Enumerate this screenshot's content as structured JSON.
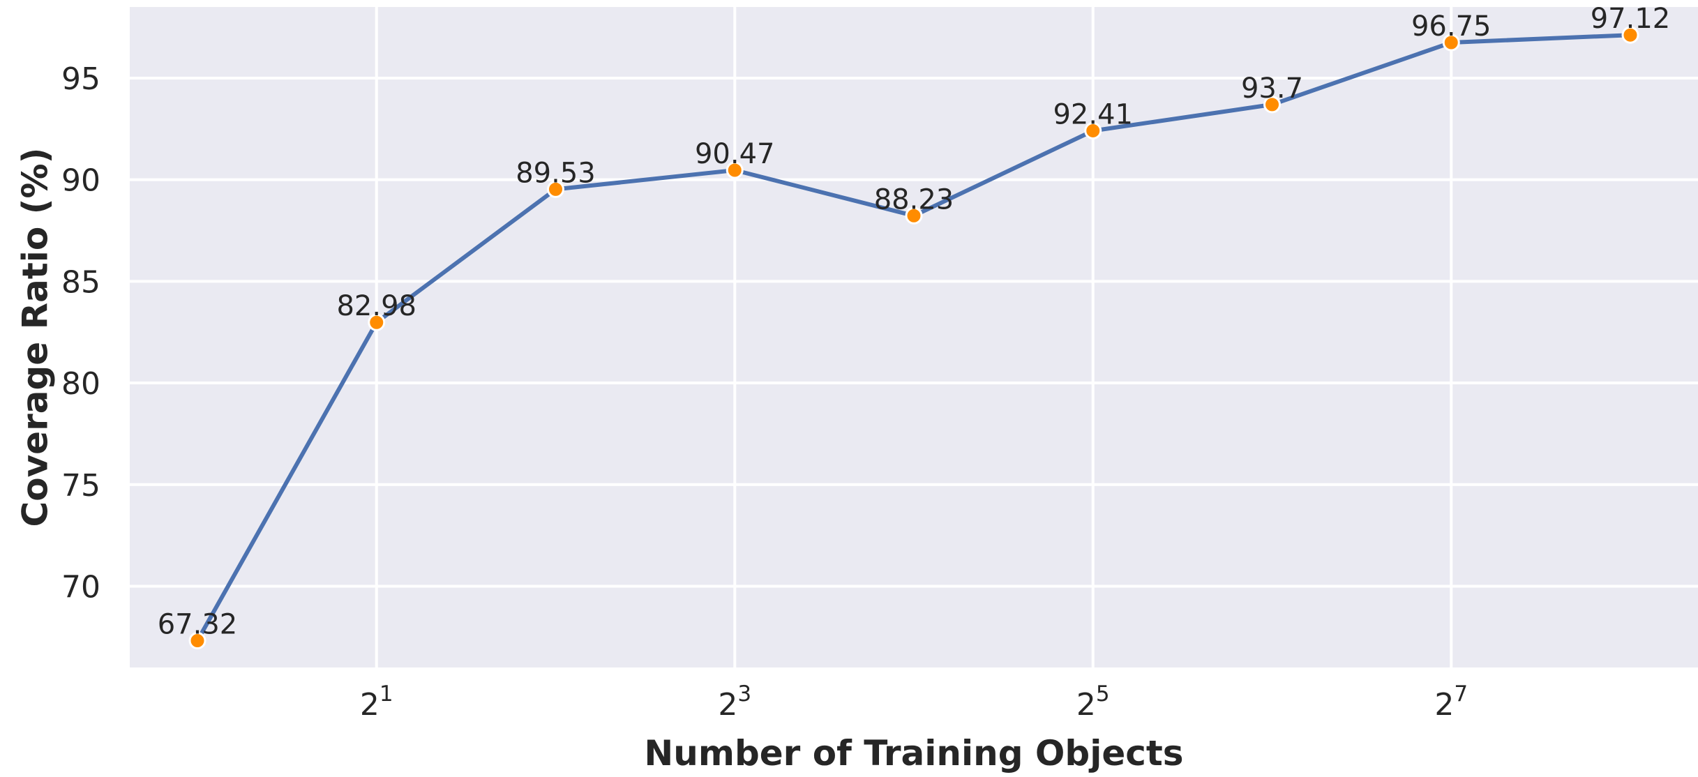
{
  "chart_data": {
    "type": "line",
    "title": "",
    "xlabel": "Number of Training Objects",
    "ylabel": "Coverage Ratio (%)",
    "x_scale": "log2",
    "x": [
      1,
      2,
      4,
      8,
      16,
      32,
      64,
      128,
      256
    ],
    "y": [
      67.32,
      82.98,
      89.53,
      90.47,
      88.23,
      92.41,
      93.7,
      96.75,
      97.12
    ],
    "data_labels": [
      "67.32",
      "82.98",
      "89.53",
      "90.47",
      "88.23",
      "92.41",
      "93.7",
      "96.75",
      "97.12"
    ],
    "x_ticks": [
      {
        "value": 2,
        "base": "2",
        "exp": "1"
      },
      {
        "value": 8,
        "base": "2",
        "exp": "3"
      },
      {
        "value": 32,
        "base": "2",
        "exp": "5"
      },
      {
        "value": 128,
        "base": "2",
        "exp": "7"
      }
    ],
    "y_ticks": [
      70,
      75,
      80,
      85,
      90,
      95
    ],
    "ylim": [
      66.0,
      98.5
    ],
    "grid": true,
    "legend": "none",
    "colors": {
      "background": "#EAEAF2",
      "grid": "#FFFFFF",
      "line": "#4C72B0",
      "marker": "#FF8C00",
      "marker_edge": "#FFFFFF",
      "text": "#262626"
    }
  }
}
